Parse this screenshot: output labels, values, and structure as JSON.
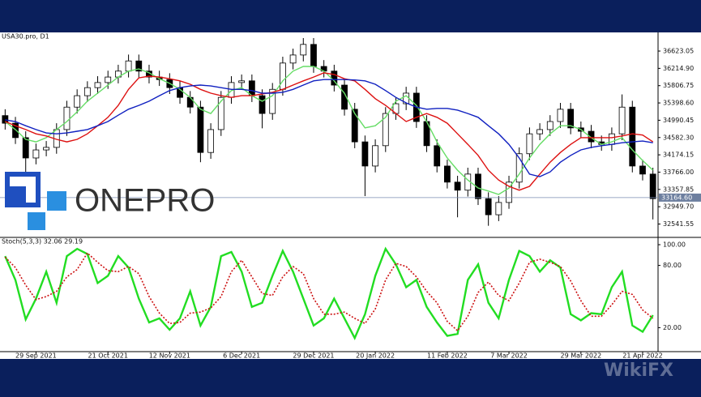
{
  "logo_text": "ONEPRO",
  "watermark": "WikiFX",
  "chart_data": [
    {
      "type": "candlestick",
      "title": "USA30.pro, D1",
      "categories": [
        null,
        null,
        null,
        "29 Sep 2021",
        null,
        null,
        null,
        null,
        null,
        null,
        "21 Oct 2021",
        null,
        null,
        null,
        null,
        null,
        "12 Nov 2021",
        null,
        null,
        null,
        null,
        null,
        null,
        "6 Dec 2021",
        null,
        null,
        null,
        null,
        null,
        null,
        "29 Dec 2021",
        null,
        null,
        null,
        null,
        null,
        "20 Jan 2022",
        null,
        null,
        null,
        null,
        null,
        null,
        "11 Feb 2022",
        null,
        null,
        null,
        null,
        null,
        "7 Mar 2022",
        null,
        null,
        null,
        null,
        null,
        null,
        "29 Mar 2022",
        null,
        null,
        null,
        null,
        null,
        "21 Apr 2022",
        null
      ],
      "open": [
        35100,
        34920,
        34580,
        34100,
        34290,
        34350,
        34770,
        35300,
        35570,
        35760,
        35880,
        36010,
        36150,
        36390,
        36150,
        36010,
        35950,
        35760,
        35530,
        35300,
        34230,
        34770,
        35530,
        35880,
        35920,
        35570,
        35150,
        35720,
        36340,
        36530,
        36780,
        36260,
        36150,
        35820,
        35250,
        34480,
        33910,
        34390,
        35150,
        35380,
        35630,
        34960,
        34390,
        33910,
        33530,
        33340,
        33720,
        33140,
        32760,
        33050,
        33530,
        34200,
        34670,
        34770,
        34960,
        35250,
        34810,
        34730,
        34480,
        34420,
        34670,
        35300,
        33910,
        33720
      ],
      "high": [
        35250,
        35070,
        34730,
        34440,
        34500,
        34920,
        35450,
        35720,
        35910,
        36030,
        36160,
        36300,
        36540,
        36540,
        36300,
        36160,
        36100,
        35910,
        35680,
        35450,
        34920,
        35680,
        36030,
        36070,
        36070,
        35720,
        35870,
        36490,
        36680,
        36930,
        36930,
        36410,
        36300,
        35970,
        35400,
        34630,
        34540,
        35300,
        35530,
        35780,
        35780,
        35110,
        34540,
        34060,
        33680,
        33870,
        33870,
        33290,
        33200,
        33680,
        34350,
        34820,
        34920,
        35110,
        35400,
        35400,
        34960,
        34880,
        34630,
        34820,
        35600,
        35450,
        34060,
        33870
      ],
      "low": [
        34770,
        34430,
        33700,
        33950,
        34140,
        34200,
        34620,
        35150,
        35420,
        35610,
        35730,
        35860,
        36000,
        36000,
        35860,
        35800,
        35610,
        35380,
        35150,
        34000,
        34080,
        34620,
        35380,
        35730,
        35420,
        34800,
        35000,
        35570,
        36190,
        36380,
        36110,
        36000,
        35670,
        35100,
        34330,
        33200,
        33760,
        34240,
        35000,
        35230,
        34810,
        34240,
        33760,
        33380,
        32700,
        33190,
        32990,
        32500,
        32610,
        32900,
        33380,
        34050,
        34520,
        34620,
        34810,
        34660,
        34580,
        34330,
        34270,
        34270,
        34520,
        33760,
        33570,
        32650
      ],
      "close": [
        34920,
        34580,
        34100,
        34290,
        34350,
        34770,
        35300,
        35570,
        35760,
        35880,
        36010,
        36150,
        36390,
        36150,
        36010,
        35950,
        35760,
        35530,
        35300,
        34230,
        34770,
        35530,
        35880,
        35920,
        35570,
        35150,
        35720,
        36340,
        36530,
        36780,
        36260,
        36150,
        35820,
        35250,
        34480,
        33910,
        34390,
        35150,
        35380,
        35630,
        34960,
        34390,
        33910,
        33530,
        33340,
        33720,
        33140,
        32760,
        33050,
        33530,
        34200,
        34670,
        34770,
        34960,
        35250,
        34810,
        34730,
        34480,
        34420,
        34670,
        35300,
        33910,
        33720,
        33140
      ],
      "up_color": "#ffffff",
      "down_color": "#000000",
      "series": [
        {
          "color": "#66dd66",
          "values": [
            34960,
            34770,
            34540,
            34480,
            34580,
            34770,
            34960,
            35190,
            35440,
            35630,
            35820,
            36010,
            36150,
            36200,
            36110,
            35970,
            35860,
            35720,
            35530,
            35250,
            35150,
            35440,
            35690,
            35760,
            35570,
            35440,
            35570,
            35920,
            36150,
            36260,
            36260,
            36150,
            35920,
            35630,
            35150,
            34810,
            34860,
            35060,
            35440,
            35570,
            35340,
            34960,
            34480,
            34100,
            33810,
            33580,
            33390,
            33320,
            33240,
            33390,
            33720,
            34100,
            34420,
            34670,
            34860,
            34860,
            34770,
            34580,
            34420,
            34480,
            34580,
            34290,
            34040,
            33810
          ]
        },
        {
          "color": "#dd1111",
          "values": [
            34960,
            34860,
            34770,
            34670,
            34620,
            34540,
            34480,
            34540,
            34670,
            34860,
            35060,
            35340,
            35720,
            35990,
            36030,
            36010,
            35970,
            35920,
            35840,
            35720,
            35630,
            35570,
            35530,
            35570,
            35570,
            35610,
            35650,
            35720,
            35820,
            35920,
            36010,
            36110,
            36070,
            35970,
            35920,
            35720,
            35500,
            35340,
            35150,
            34960,
            35060,
            35150,
            35060,
            34920,
            34670,
            34420,
            34160,
            33810,
            33580,
            33430,
            33340,
            33430,
            33720,
            34000,
            34230,
            34420,
            34580,
            34580,
            34580,
            34580,
            34620,
            34670,
            34640,
            34480
          ]
        },
        {
          "color": "#1020c0",
          "values": [
            35000,
            34960,
            34860,
            34770,
            34690,
            34670,
            34690,
            34730,
            34770,
            34860,
            34960,
            35110,
            35250,
            35340,
            35440,
            35570,
            35690,
            35760,
            35800,
            35820,
            35800,
            35760,
            35720,
            35720,
            35690,
            35630,
            35630,
            35650,
            35720,
            35820,
            35920,
            35950,
            35950,
            35950,
            35940,
            35920,
            35840,
            35690,
            35530,
            35400,
            35300,
            35250,
            35270,
            35270,
            35230,
            35150,
            35060,
            34860,
            34670,
            34420,
            34100,
            33720,
            33660,
            33770,
            34000,
            34160,
            34290,
            34350,
            34390,
            34420,
            34460,
            34480,
            34500,
            34460
          ]
        }
      ],
      "ylim": [
        32245,
        37025
      ],
      "yticks": [
        {
          "value": 32541.55,
          "label": "32541.55"
        },
        {
          "value": 32949.7,
          "label": "32949.70"
        },
        {
          "value": 33357.85,
          "label": "33357.85"
        },
        {
          "value": 33766,
          "label": "33766.00"
        },
        {
          "value": 34174.15,
          "label": "34174.15"
        },
        {
          "value": 34582.3,
          "label": "34582.30"
        },
        {
          "value": 34990.45,
          "label": "34990.45"
        },
        {
          "value": 35398.6,
          "label": "35398.60"
        },
        {
          "value": 35806.75,
          "label": "35806.75"
        },
        {
          "value": 36214.9,
          "label": "36214.90"
        },
        {
          "value": 36623.05,
          "label": "36623.05"
        }
      ],
      "current_price": {
        "value": 33164.6,
        "label": "33164.60"
      }
    },
    {
      "type": "line",
      "title": "Stoch(5,3,3) 32.06 29.19",
      "series": [
        {
          "color": "#22dd22",
          "values": [
            89,
            66,
            28,
            48,
            74,
            44,
            89,
            96,
            91,
            63,
            70,
            89,
            78,
            48,
            25,
            29,
            18,
            29,
            55,
            22,
            40,
            89,
            93,
            74,
            40,
            44,
            70,
            94,
            74,
            48,
            22,
            29,
            48,
            29,
            10,
            33,
            70,
            96,
            81,
            59,
            66,
            40,
            25,
            12,
            14,
            66,
            81,
            44,
            29,
            66,
            94,
            89,
            74,
            85,
            78,
            33,
            27,
            34,
            33,
            59,
            74,
            22,
            16,
            32
          ]
        },
        {
          "color": "#cc1111",
          "dashed": true,
          "values": [
            88,
            78,
            61,
            47,
            50,
            55,
            69,
            76,
            92,
            83,
            75,
            74,
            79,
            72,
            50,
            34,
            24,
            25,
            34,
            35,
            39,
            50,
            74,
            85,
            69,
            53,
            51,
            69,
            79,
            72,
            48,
            33,
            33,
            35,
            29,
            24,
            38,
            66,
            82,
            79,
            69,
            55,
            44,
            26,
            17,
            31,
            54,
            64,
            51,
            46,
            63,
            83,
            86,
            83,
            79,
            65,
            46,
            31,
            31,
            42,
            55,
            52,
            37,
            29
          ]
        }
      ],
      "ylim": [
        0,
        100
      ],
      "yticks": [
        {
          "value": 20,
          "label": "20.00"
        },
        {
          "value": 80,
          "label": "80.00"
        },
        {
          "value": 100,
          "label": "100.00"
        }
      ]
    }
  ]
}
